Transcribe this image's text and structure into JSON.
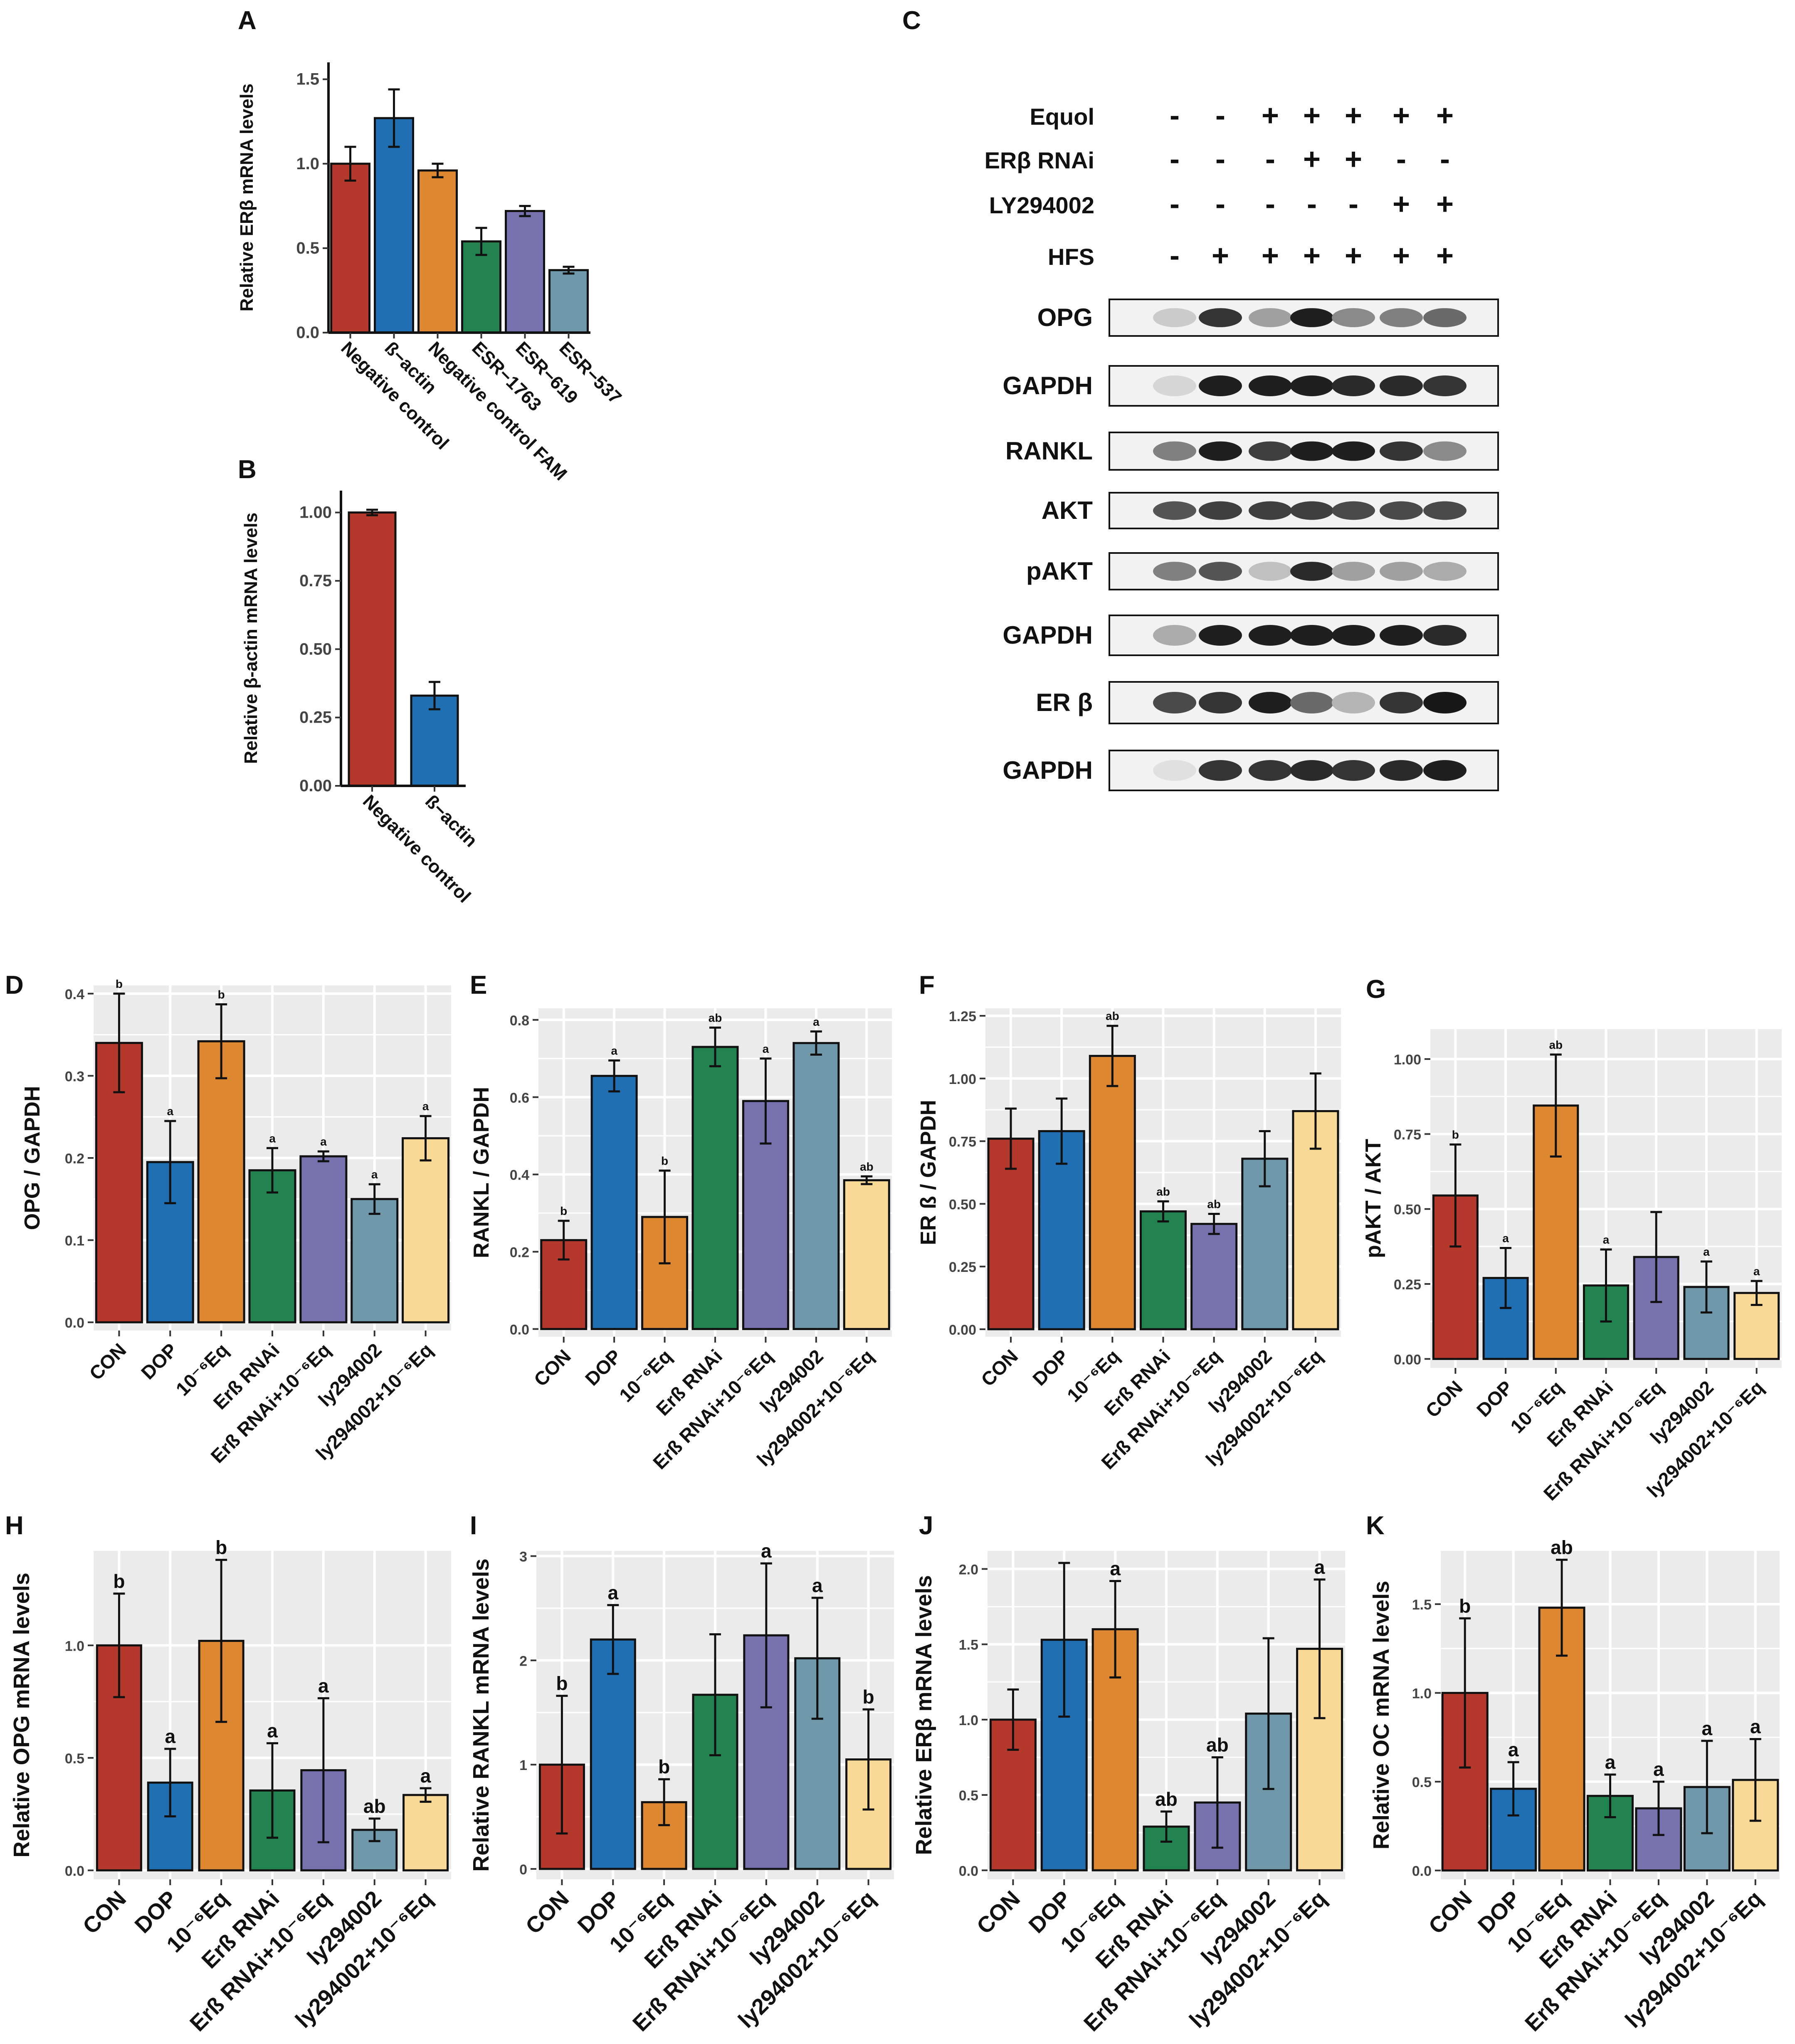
{
  "colors": {
    "red": "#B5382C",
    "blue": "#1F6FB2",
    "orange": "#DD8730",
    "green": "#238350",
    "purple": "#7771AE",
    "teal": "#6F99AB",
    "cream": "#F9D996",
    "panel_bg": "#EBEBEB"
  },
  "blot": {
    "treatments": [
      {
        "label": "Equol",
        "signs": [
          "-",
          "-",
          "+",
          "+",
          "+",
          "+",
          "+"
        ]
      },
      {
        "label": "ERβ RNAi",
        "signs": [
          "-",
          "-",
          "-",
          "+",
          "+",
          "-",
          "-"
        ]
      },
      {
        "label": "LY294002",
        "signs": [
          "-",
          "-",
          "-",
          "-",
          "-",
          "+",
          "+"
        ]
      },
      {
        "label": "HFS",
        "signs": [
          "-",
          "+",
          "+",
          "+",
          "+",
          "+",
          "+"
        ]
      }
    ],
    "bands": [
      {
        "label": "OPG",
        "intensity": [
          0.15,
          0.85,
          0.35,
          0.95,
          0.45,
          0.5,
          0.6
        ]
      },
      {
        "label": "GAPDH",
        "intensity": [
          0.1,
          0.95,
          0.95,
          0.95,
          0.9,
          0.9,
          0.85
        ]
      },
      {
        "label": "RANKL",
        "intensity": [
          0.5,
          0.95,
          0.8,
          0.95,
          0.95,
          0.85,
          0.45
        ]
      },
      {
        "label": "AKT",
        "intensity": [
          0.7,
          0.8,
          0.8,
          0.8,
          0.75,
          0.75,
          0.75
        ]
      },
      {
        "label": "pAKT",
        "intensity": [
          0.5,
          0.7,
          0.2,
          0.9,
          0.35,
          0.35,
          0.3
        ]
      },
      {
        "label": "GAPDH",
        "intensity": [
          0.3,
          0.95,
          0.95,
          0.95,
          0.95,
          0.95,
          0.9
        ]
      },
      {
        "label": "ER β",
        "intensity": [
          0.75,
          0.85,
          0.95,
          0.6,
          0.25,
          0.85,
          0.98
        ]
      },
      {
        "label": "GAPDH",
        "intensity": [
          0.05,
          0.85,
          0.85,
          0.9,
          0.85,
          0.9,
          0.95
        ]
      }
    ]
  },
  "chart_data": [
    {
      "id": "A",
      "type": "bar",
      "panel_letter": "A",
      "categories": [
        "Negative control",
        "ß−actin",
        "Negative control FAM",
        "ESR−1763",
        "ESR−619",
        "ESR−537"
      ],
      "values": [
        1.0,
        1.27,
        0.96,
        0.54,
        0.72,
        0.37
      ],
      "errors": [
        0.1,
        0.17,
        0.04,
        0.08,
        0.03,
        0.02
      ],
      "colors": [
        "red",
        "blue",
        "orange",
        "green",
        "purple",
        "teal"
      ],
      "sig": [
        "",
        "",
        "",
        "",
        "",
        ""
      ],
      "ylabel": "Relative ERβ mRNA levels",
      "ylim": [
        0,
        1.6
      ],
      "yticks": [
        0.0,
        0.5,
        1.0,
        1.5
      ],
      "tick_labels": [
        "0.0",
        "0.5",
        "1.0",
        "1.5"
      ],
      "grid": false
    },
    {
      "id": "B",
      "type": "bar",
      "panel_letter": "B",
      "categories": [
        "Negative control",
        "ß−actin"
      ],
      "values": [
        1.0,
        0.33
      ],
      "errors": [
        0.01,
        0.05
      ],
      "colors": [
        "red",
        "blue"
      ],
      "sig": [
        "",
        ""
      ],
      "ylabel": "Relative β-actin mRNA levels",
      "ylim": [
        0,
        1.08
      ],
      "yticks": [
        0.0,
        0.25,
        0.5,
        0.75,
        1.0
      ],
      "tick_labels": [
        "0.00",
        "0.25",
        "0.50",
        "0.75",
        "1.00"
      ],
      "grid": false
    },
    {
      "id": "D",
      "type": "bar",
      "panel_letter": "D",
      "categories": [
        "CON",
        "DOP",
        "10⁻⁶Eq",
        "Erß RNAi",
        "Erß RNAi+10⁻⁶Eq",
        "ly294002",
        "ly294002+10⁻⁶Eq"
      ],
      "values": [
        0.34,
        0.195,
        0.342,
        0.185,
        0.202,
        0.15,
        0.224
      ],
      "errors": [
        0.06,
        0.05,
        0.045,
        0.027,
        0.006,
        0.018,
        0.027
      ],
      "colors": [
        "red",
        "blue",
        "orange",
        "green",
        "purple",
        "teal",
        "cream"
      ],
      "sig": [
        "b",
        "a",
        "b",
        "a",
        "a",
        "a",
        "a"
      ],
      "ylabel": "OPG / GAPDH",
      "ylim": [
        -0.01,
        0.41
      ],
      "yticks": [
        0.0,
        0.1,
        0.2,
        0.3,
        0.4
      ],
      "tick_labels": [
        "0.0",
        "0.1",
        "0.2",
        "0.3",
        "0.4"
      ],
      "grid": true
    },
    {
      "id": "E",
      "type": "bar",
      "panel_letter": "E",
      "categories": [
        "CON",
        "DOP",
        "10⁻⁶Eq",
        "Erß RNAi",
        "Erß RNAi+10⁻⁶Eq",
        "ly294002",
        "ly294002+10⁻⁶Eq"
      ],
      "values": [
        0.23,
        0.655,
        0.29,
        0.73,
        0.59,
        0.74,
        0.385
      ],
      "errors": [
        0.05,
        0.04,
        0.12,
        0.05,
        0.11,
        0.03,
        0.01
      ],
      "colors": [
        "red",
        "blue",
        "orange",
        "green",
        "purple",
        "teal",
        "cream"
      ],
      "sig": [
        "b",
        "a",
        "b",
        "ab",
        "a",
        "a",
        "ab"
      ],
      "ylabel": "RANKL / GAPDH",
      "ylim": [
        -0.02,
        0.83
      ],
      "yticks": [
        0.0,
        0.2,
        0.4,
        0.6,
        0.8
      ],
      "tick_labels": [
        "0.0",
        "0.2",
        "0.4",
        "0.6",
        "0.8"
      ],
      "grid": true
    },
    {
      "id": "F",
      "type": "bar",
      "panel_letter": "F",
      "categories": [
        "CON",
        "DOP",
        "10⁻⁶Eq",
        "Erß RNAi",
        "Erß RNAi+10⁻⁶Eq",
        "ly294002",
        "ly294002+10⁻⁶Eq"
      ],
      "values": [
        0.76,
        0.79,
        1.09,
        0.47,
        0.42,
        0.68,
        0.87
      ],
      "errors": [
        0.12,
        0.13,
        0.12,
        0.04,
        0.04,
        0.11,
        0.15
      ],
      "colors": [
        "red",
        "blue",
        "orange",
        "green",
        "purple",
        "teal",
        "cream"
      ],
      "sig": [
        "",
        "",
        "ab",
        "ab",
        "ab",
        "",
        ""
      ],
      "ylabel": "ER ß / GAPDH",
      "ylim": [
        -0.03,
        1.28
      ],
      "yticks": [
        0.0,
        0.25,
        0.5,
        0.75,
        1.0,
        1.25
      ],
      "tick_labels": [
        "0.00",
        "0.25",
        "0.50",
        "0.75",
        "1.00",
        "1.25"
      ],
      "grid": true
    },
    {
      "id": "G",
      "type": "bar",
      "panel_letter": "G",
      "categories": [
        "CON",
        "DOP",
        "10⁻⁶Eq",
        "Erß RNAi",
        "Erß RNAi+10⁻⁶Eq",
        "ly294002",
        "ly294002+10⁻⁶Eq"
      ],
      "values": [
        0.545,
        0.27,
        0.845,
        0.245,
        0.34,
        0.24,
        0.22
      ],
      "errors": [
        0.17,
        0.1,
        0.17,
        0.12,
        0.15,
        0.085,
        0.04
      ],
      "colors": [
        "red",
        "blue",
        "orange",
        "green",
        "purple",
        "teal",
        "cream"
      ],
      "sig": [
        "b",
        "a",
        "ab",
        "a",
        "",
        "a",
        "a"
      ],
      "ylabel": "pAKT / AKT",
      "ylim": [
        -0.03,
        1.1
      ],
      "yticks": [
        0.0,
        0.25,
        0.5,
        0.75,
        1.0
      ],
      "tick_labels": [
        "0.00",
        "0.25",
        "0.50",
        "0.75",
        "1.00"
      ],
      "grid": true
    },
    {
      "id": "H",
      "type": "bar",
      "panel_letter": "H",
      "categories": [
        "CON",
        "DOP",
        "10⁻⁶Eq",
        "Erß RNAi",
        "Erß RNAi+10⁻⁶Eq",
        "ly294002",
        "ly294002+10⁻⁶Eq"
      ],
      "values": [
        1.0,
        0.39,
        1.02,
        0.355,
        0.445,
        0.18,
        0.335
      ],
      "errors": [
        0.23,
        0.15,
        0.36,
        0.21,
        0.32,
        0.05,
        0.03
      ],
      "colors": [
        "red",
        "blue",
        "orange",
        "green",
        "purple",
        "teal",
        "cream"
      ],
      "sig": [
        "b",
        "a",
        "b",
        "a",
        "a",
        "ab",
        "a"
      ],
      "ylabel": "Relative OPG mRNA levels",
      "ylim": [
        -0.04,
        1.42
      ],
      "yticks": [
        0.0,
        0.5,
        1.0
      ],
      "tick_labels": [
        "0.0",
        "0.5",
        "1.0"
      ],
      "grid": true
    },
    {
      "id": "I",
      "type": "bar",
      "panel_letter": "I",
      "categories": [
        "CON",
        "DOP",
        "10⁻⁶Eq",
        "Erß RNAi",
        "Erß RNAi+10⁻⁶Eq",
        "ly294002",
        "ly294002+10⁻⁶Eq"
      ],
      "values": [
        1.0,
        2.2,
        0.64,
        1.67,
        2.24,
        2.02,
        1.05
      ],
      "errors": [
        0.66,
        0.33,
        0.22,
        0.58,
        0.69,
        0.58,
        0.48
      ],
      "colors": [
        "red",
        "blue",
        "orange",
        "green",
        "purple",
        "teal",
        "cream"
      ],
      "sig": [
        "b",
        "a",
        "b",
        "",
        "a",
        "a",
        "b"
      ],
      "ylabel": "Relative RANKL mRNA levels",
      "ylim": [
        -0.1,
        3.05
      ],
      "yticks": [
        0,
        1,
        2,
        3
      ],
      "tick_labels": [
        "0",
        "1",
        "2",
        "3"
      ],
      "grid": true
    },
    {
      "id": "J",
      "type": "bar",
      "panel_letter": "J",
      "categories": [
        "CON",
        "DOP",
        "10⁻⁶Eq",
        "Erß RNAi",
        "Erß RNAi+10⁻⁶Eq",
        "ly294002",
        "ly294002+10⁻⁶Eq"
      ],
      "values": [
        1.0,
        1.53,
        1.6,
        0.29,
        0.45,
        1.04,
        1.47
      ],
      "errors": [
        0.2,
        0.51,
        0.32,
        0.1,
        0.3,
        0.5,
        0.46
      ],
      "colors": [
        "red",
        "blue",
        "orange",
        "green",
        "purple",
        "teal",
        "cream"
      ],
      "sig": [
        "",
        "",
        "a",
        "ab",
        "ab",
        "",
        "a"
      ],
      "ylabel": "Relative ERβ mRNA levels",
      "ylim": [
        -0.06,
        2.12
      ],
      "yticks": [
        0.0,
        0.5,
        1.0,
        1.5,
        2.0
      ],
      "tick_labels": [
        "0.0",
        "0.5",
        "1.0",
        "1.5",
        "2.0"
      ],
      "grid": true
    },
    {
      "id": "K",
      "type": "bar",
      "panel_letter": "K",
      "categories": [
        "CON",
        "DOP",
        "10⁻⁶Eq",
        "Erß RNAi",
        "Erß RNAi+10⁻⁶Eq",
        "ly294002",
        "ly294002+10⁻⁶Eq"
      ],
      "values": [
        1.0,
        0.46,
        1.48,
        0.42,
        0.35,
        0.47,
        0.51
      ],
      "errors": [
        0.42,
        0.15,
        0.27,
        0.12,
        0.15,
        0.26,
        0.23
      ],
      "colors": [
        "red",
        "blue",
        "orange",
        "green",
        "purple",
        "teal",
        "cream"
      ],
      "sig": [
        "b",
        "a",
        "ab",
        "a",
        "a",
        "a",
        "a"
      ],
      "ylabel": "Relative OC mRNA levels",
      "ylim": [
        -0.05,
        1.8
      ],
      "yticks": [
        0.0,
        0.5,
        1.0,
        1.5
      ],
      "tick_labels": [
        "0.0",
        "0.5",
        "1.0",
        "1.5"
      ],
      "grid": true
    }
  ],
  "panel_letters": {
    "C": "C"
  }
}
